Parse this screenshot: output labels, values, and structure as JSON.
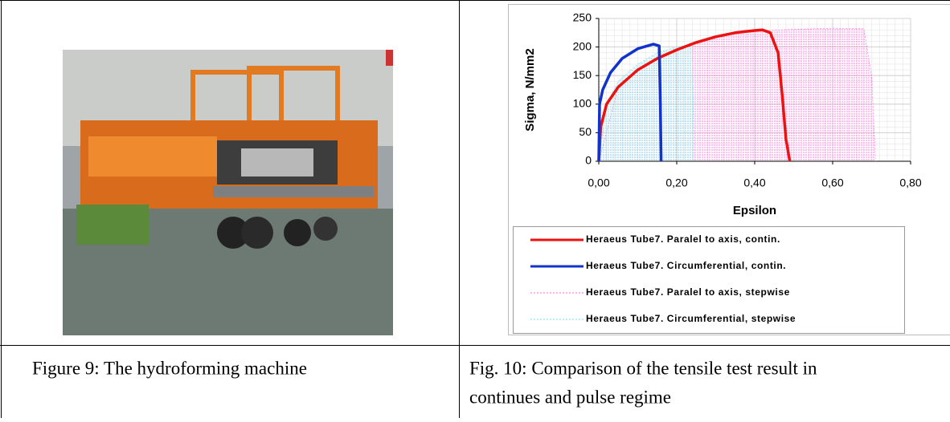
{
  "table": {
    "captions": [
      "Figure 9: The hydroforming machine",
      "Fig. 10: Comparison of the tensile test result in",
      "continues and pulse regime"
    ]
  },
  "chart_data": {
    "type": "line",
    "y_label": "Sigma, N/mm2",
    "x_label": "Epsilon",
    "xlim": [
      0,
      0.8
    ],
    "ylim": [
      0,
      250
    ],
    "xticks": [
      {
        "value": 0,
        "label": "0,00"
      },
      {
        "value": 0.2,
        "label": "0,20"
      },
      {
        "value": 0.4,
        "label": "0,40"
      },
      {
        "value": 0.6,
        "label": "0,60"
      },
      {
        "value": 0.8,
        "label": "0,80"
      }
    ],
    "yticks": [
      0,
      50,
      100,
      150,
      200,
      250
    ],
    "grid": true,
    "legend": "bottom",
    "series": [
      {
        "name": "Heraeus Tube7. Paralel to axis, stepwise",
        "color": "#ff66dd",
        "style": "stepwise",
        "x": [
          0,
          0.05,
          0.1,
          0.2,
          0.3,
          0.4,
          0.5,
          0.6,
          0.68,
          0.7,
          0.71
        ],
        "values": [
          0,
          130,
          160,
          195,
          218,
          228,
          231,
          233,
          232,
          150,
          0
        ]
      },
      {
        "name": "Heraeus Tube7. Circumferential, stepwise",
        "color": "#66e0f0",
        "style": "stepwise",
        "x": [
          0,
          0.02,
          0.05,
          0.1,
          0.15,
          0.2,
          0.24,
          0.245
        ],
        "values": [
          0,
          100,
          140,
          170,
          190,
          200,
          205,
          0
        ]
      },
      {
        "name": "Heraeus Tube7. Paralel to axis, contin.",
        "color": "#ee1111",
        "style": "contin",
        "x": [
          0,
          0.005,
          0.02,
          0.05,
          0.1,
          0.15,
          0.2,
          0.25,
          0.3,
          0.35,
          0.4,
          0.42,
          0.44,
          0.46,
          0.47,
          0.48,
          0.49
        ],
        "values": [
          0,
          60,
          100,
          130,
          160,
          180,
          195,
          208,
          218,
          225,
          229,
          230,
          225,
          190,
          120,
          40,
          0
        ]
      },
      {
        "name": "Heraeus Tube7. Circumferential, contin.",
        "color": "#1133cc",
        "style": "contin",
        "x": [
          0,
          0.002,
          0.01,
          0.03,
          0.06,
          0.1,
          0.14,
          0.155,
          0.158,
          0.16
        ],
        "values": [
          0,
          100,
          125,
          155,
          180,
          197,
          205,
          202,
          100,
          0
        ]
      }
    ],
    "legend_order": [
      2,
      3,
      0,
      1
    ]
  }
}
